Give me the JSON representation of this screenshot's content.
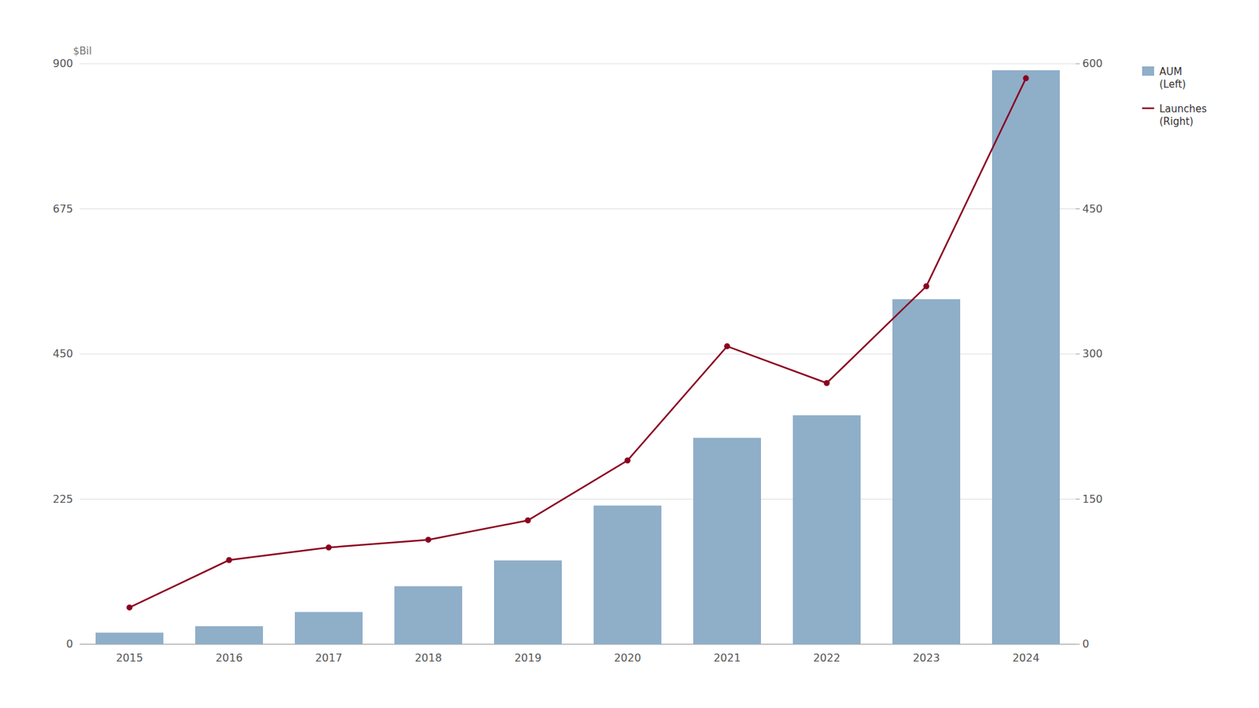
{
  "chart_data": {
    "type": "bar",
    "categories": [
      "2015",
      "2016",
      "2017",
      "2018",
      "2019",
      "2020",
      "2021",
      "2022",
      "2023",
      "2024"
    ],
    "series": [
      {
        "name": "AUM\n(Left)",
        "type": "bar",
        "color": "#8faec8",
        "values": [
          18,
          28,
          50,
          90,
          130,
          215,
          320,
          355,
          535,
          890
        ]
      },
      {
        "name": "Launches\n(Right)",
        "type": "line",
        "axis": "y2",
        "color": "#8b0020",
        "marker": "circle",
        "values": [
          38,
          87,
          100,
          108,
          128,
          190,
          308,
          270,
          370,
          585
        ]
      }
    ],
    "y_label": "$Bil",
    "ylim": [
      0,
      900
    ],
    "yticks": [
      0,
      225,
      450,
      675,
      900
    ],
    "y2lim": [
      0,
      600
    ],
    "y2ticks": [
      0,
      150,
      300,
      450,
      600
    ],
    "grid": true,
    "legend": "right"
  }
}
